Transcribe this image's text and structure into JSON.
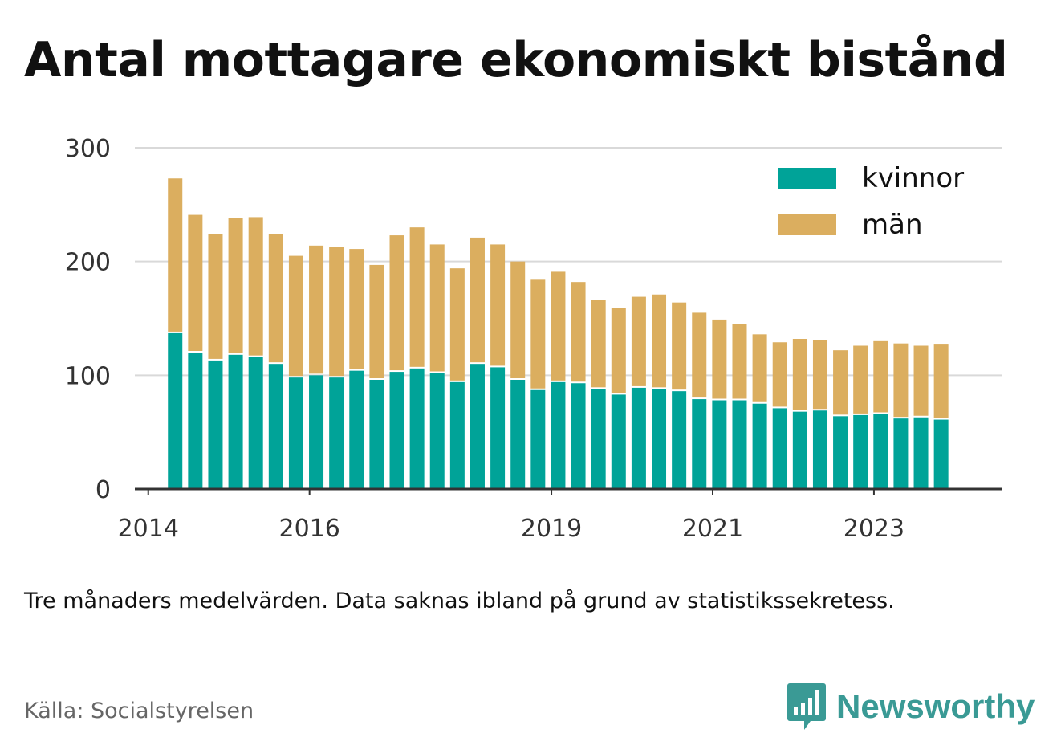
{
  "title": "Antal mottagare ekonomiskt bistånd",
  "note": "Tre månaders medelvärden. Data saknas ibland på grund av statistikssekretess.",
  "source": "Källa: Socialstyrelsen",
  "brand": {
    "name": "Newsworthy",
    "icon": "newsworthy-logo-icon",
    "color": "#3a9a95"
  },
  "colors": {
    "kvinnor": "#00a398",
    "man": "#dbae5f",
    "grid": "#d9d9d9",
    "axis": "#333333"
  },
  "chart_data": {
    "type": "bar",
    "stacked": true,
    "categories": [
      "2014-05",
      "2014-08",
      "2014-11",
      "2015-02",
      "2015-05",
      "2015-08",
      "2015-11",
      "2016-02",
      "2016-05",
      "2016-08",
      "2016-11",
      "2017-02",
      "2017-05",
      "2017-08",
      "2017-11",
      "2018-02",
      "2018-05",
      "2018-08",
      "2018-11",
      "2019-02",
      "2019-05",
      "2019-08",
      "2019-11",
      "2020-02",
      "2020-05",
      "2020-08",
      "2020-11",
      "2021-02",
      "2021-05",
      "2021-08",
      "2021-11",
      "2022-02",
      "2022-05",
      "2022-08",
      "2022-11",
      "2023-02",
      "2023-05",
      "2023-08",
      "2023-11"
    ],
    "series": [
      {
        "name": "kvinnor",
        "values": [
          137,
          120,
          113,
          118,
          116,
          110,
          98,
          100,
          98,
          104,
          96,
          103,
          106,
          102,
          94,
          110,
          107,
          96,
          87,
          94,
          93,
          88,
          83,
          89,
          88,
          86,
          79,
          78,
          78,
          75,
          71,
          68,
          69,
          64,
          65,
          66,
          62,
          63,
          61
        ]
      },
      {
        "name": "män",
        "values": [
          136,
          121,
          111,
          120,
          123,
          114,
          107,
          114,
          115,
          107,
          101,
          120,
          124,
          113,
          100,
          111,
          108,
          104,
          97,
          97,
          89,
          78,
          76,
          80,
          83,
          78,
          76,
          71,
          67,
          61,
          58,
          64,
          62,
          58,
          61,
          64,
          66,
          63,
          66
        ]
      }
    ],
    "xticks": [
      {
        "label": "2014",
        "at": "2014-01"
      },
      {
        "label": "2016",
        "at": "2016-01"
      },
      {
        "label": "2019",
        "at": "2019-01"
      },
      {
        "label": "2021",
        "at": "2021-01"
      },
      {
        "label": "2023",
        "at": "2023-01"
      }
    ],
    "yticks": [
      0,
      100,
      200,
      300
    ],
    "ylim": [
      0,
      300
    ],
    "xlim": [
      "2013-11",
      "2024-08"
    ],
    "grid": true,
    "legend": {
      "position": "top-right",
      "entries": [
        "kvinnor",
        "män"
      ]
    }
  }
}
